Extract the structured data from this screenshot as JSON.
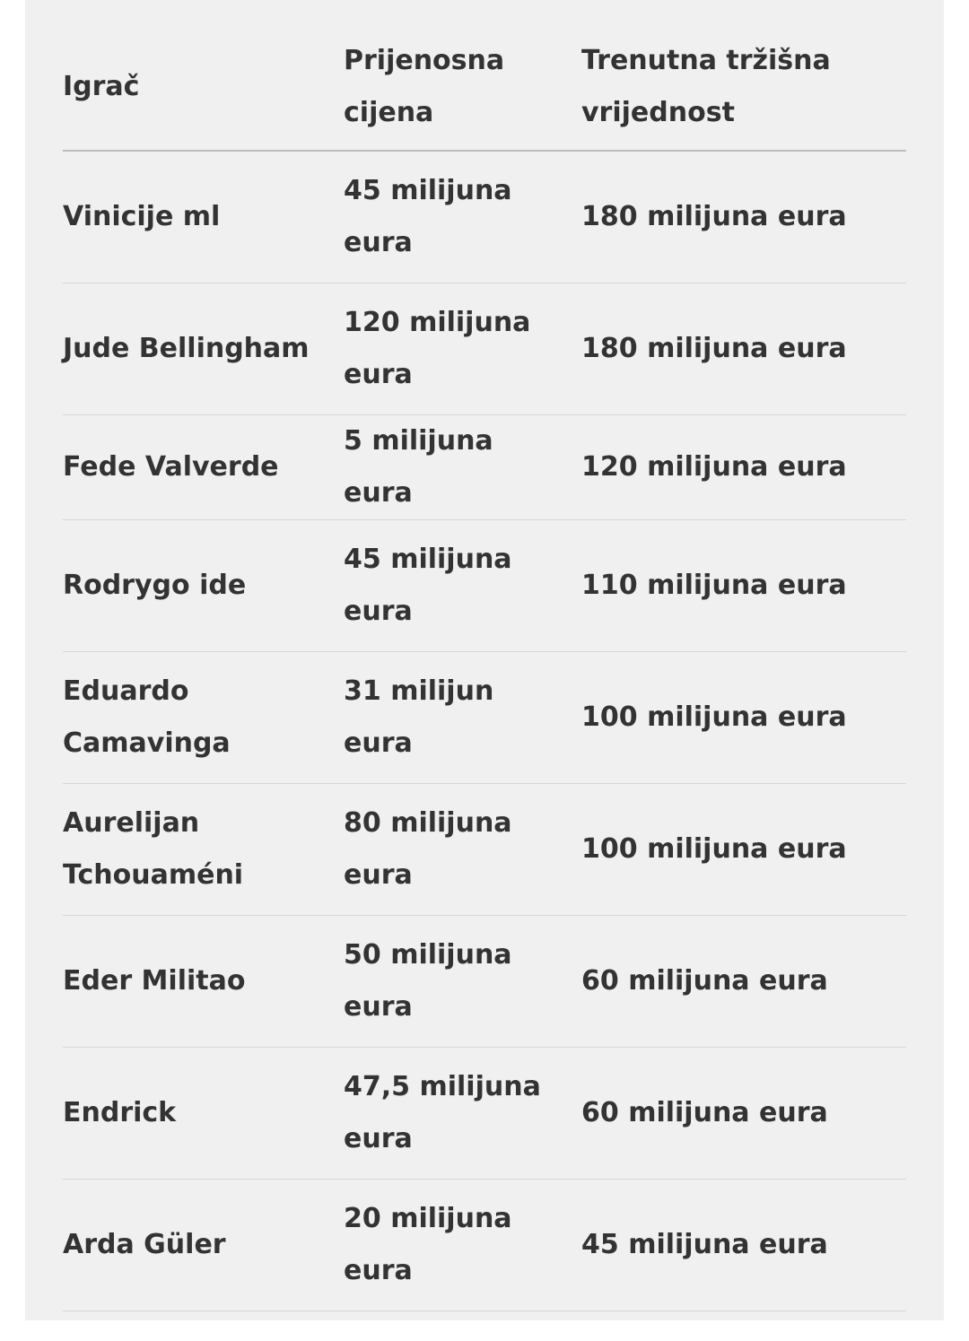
{
  "table": {
    "headers": [
      "Igrač",
      "Prijenosna cijena",
      "Trenutna tržišna vrijednost"
    ],
    "rows": [
      [
        "Vinicije ml",
        "45 milijuna eura",
        "180 milijuna eura"
      ],
      [
        "Jude Bellingham",
        "120 milijuna eura",
        "180 milijuna eura"
      ],
      [
        "Fede Valverde",
        "5 milijuna eura",
        "120 milijuna eura"
      ],
      [
        "Rodrygo ide",
        "45 milijuna eura",
        "110 milijuna eura"
      ],
      [
        "Eduardo Camavinga",
        "31 milijun eura",
        "100 milijuna eura"
      ],
      [
        "Aurelijan Tchouaméni",
        "80 milijuna eura",
        "100 milijuna eura"
      ],
      [
        "Eder Militao",
        "50 milijuna eura",
        "60 milijuna eura"
      ],
      [
        "Endrick",
        "47,5 milijuna eura",
        "60 milijuna eura"
      ],
      [
        "Arda Güler",
        "20 milijuna eura",
        "45 milijuna eura"
      ]
    ]
  }
}
